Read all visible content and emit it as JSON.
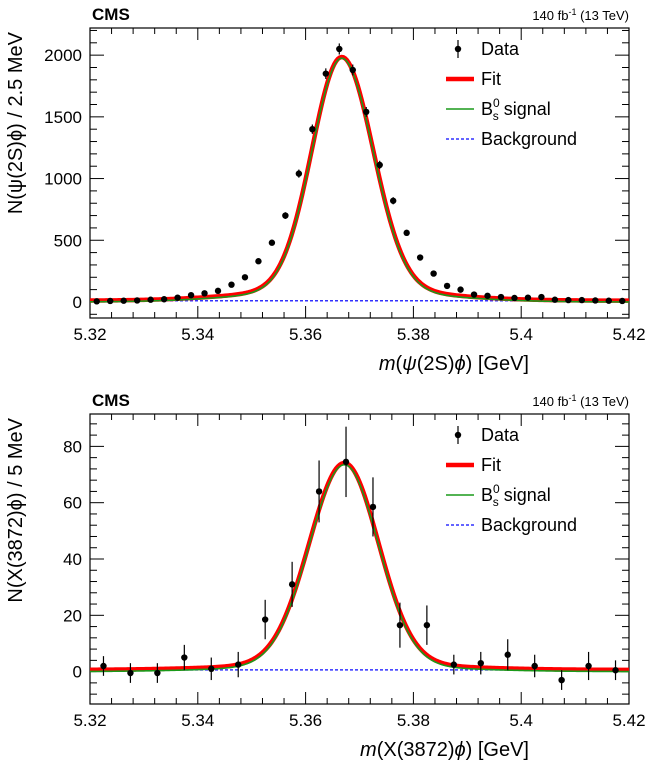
{
  "chart_data": [
    {
      "type": "scatter",
      "experiment": "CMS",
      "lumi_value": "140 fb",
      "lumi_exp": "-1",
      "lumi_energy": "(13 TeV)",
      "xlabel_m": "m",
      "xlabel_paren": "(",
      "xlabel_state": "ψ",
      "xlabel_state_rest": "(2S)",
      "xlabel_phi": "ϕ",
      "xlabel_close": ") [GeV]",
      "ylabel": "N(ψ(2S)ϕ) / 2.5 MeV",
      "xlim": [
        5.32,
        5.42
      ],
      "ylim": [
        -130,
        2220
      ],
      "xticks": [
        5.32,
        5.34,
        5.36,
        5.38,
        5.4,
        5.42
      ],
      "xtick_labels": [
        "5.32",
        "5.34",
        "5.36",
        "5.38",
        "5.4",
        "5.42"
      ],
      "yticks": [
        0,
        500,
        1000,
        1500,
        2000
      ],
      "ytick_labels": [
        "0",
        "500",
        "1000",
        "1500",
        "2000"
      ],
      "legend": {
        "position": "top-right",
        "data": "Data",
        "fit": "Fit",
        "signal_main": "B",
        "signal_sup": "0",
        "signal_sub": "s",
        "signal_rest": " signal",
        "background": "Background"
      },
      "series": [
        {
          "name": "Data",
          "x": [
            5.32125,
            5.32375,
            5.32625,
            5.32875,
            5.33125,
            5.33375,
            5.33625,
            5.33875,
            5.34125,
            5.34375,
            5.34625,
            5.34875,
            5.35125,
            5.35375,
            5.35625,
            5.35875,
            5.36125,
            5.36375,
            5.36625,
            5.36875,
            5.37125,
            5.37375,
            5.37625,
            5.37875,
            5.38125,
            5.38375,
            5.38625,
            5.38875,
            5.39125,
            5.39375,
            5.39625,
            5.39875,
            5.40125,
            5.40375,
            5.40625,
            5.40875,
            5.41125,
            5.41375,
            5.41625,
            5.41875
          ],
          "y": [
            5,
            8,
            10,
            12,
            18,
            22,
            35,
            55,
            70,
            90,
            140,
            200,
            330,
            480,
            700,
            1040,
            1400,
            1850,
            2050,
            1880,
            1540,
            1110,
            820,
            560,
            360,
            230,
            130,
            100,
            60,
            50,
            40,
            32,
            35,
            40,
            18,
            15,
            15,
            12,
            10,
            8
          ],
          "err": [
            3,
            3,
            4,
            4,
            5,
            5,
            6,
            8,
            9,
            10,
            12,
            15,
            19,
            22,
            27,
            33,
            38,
            43,
            45,
            44,
            40,
            34,
            29,
            24,
            19,
            15,
            12,
            10,
            8,
            7,
            7,
            6,
            6,
            7,
            5,
            4,
            4,
            4,
            4,
            3
          ]
        },
        {
          "name": "Fit",
          "line_color": "#ff0000",
          "model": {
            "mean": 5.3667,
            "sigma_left": 0.0055,
            "sigma_right": 0.0058,
            "amplitude": 1975,
            "tail_frac": 0.05,
            "tail_width": 0.016,
            "background": 10
          }
        },
        {
          "name": "B_s^0 signal",
          "line_color": "#1a9a1a"
        },
        {
          "name": "Background",
          "line_color": "#3030ff",
          "value": 10
        }
      ]
    },
    {
      "type": "scatter",
      "experiment": "CMS",
      "lumi_value": "140 fb",
      "lumi_exp": "-1",
      "lumi_energy": "(13 TeV)",
      "xlabel_m": "m",
      "xlabel_paren": "(X(3872)",
      "xlabel_phi": "ϕ",
      "xlabel_close": ") [GeV]",
      "ylabel": "N(X(3872)ϕ) / 5 MeV",
      "xlim": [
        5.32,
        5.42
      ],
      "ylim": [
        -11.5,
        91.5
      ],
      "xticks": [
        5.32,
        5.34,
        5.36,
        5.38,
        5.4,
        5.42
      ],
      "xtick_labels": [
        "5.32",
        "5.34",
        "5.36",
        "5.38",
        "5.4",
        "5.42"
      ],
      "yticks": [
        0,
        20,
        40,
        60,
        80
      ],
      "ytick_labels": [
        "0",
        "20",
        "40",
        "60",
        "80"
      ],
      "legend": {
        "position": "top-right",
        "data": "Data",
        "fit": "Fit",
        "signal_main": "B",
        "signal_sup": "0",
        "signal_sub": "s",
        "signal_rest": " signal",
        "background": "Background"
      },
      "series": [
        {
          "name": "Data",
          "x": [
            5.3225,
            5.3275,
            5.3325,
            5.3375,
            5.3425,
            5.3475,
            5.3525,
            5.3575,
            5.3625,
            5.3675,
            5.3725,
            5.3775,
            5.3825,
            5.3875,
            5.3925,
            5.3975,
            5.4025,
            5.4075,
            5.4125,
            5.4175
          ],
          "y": [
            2,
            -0.5,
            -0.5,
            5,
            1,
            2.5,
            18.5,
            31,
            64,
            74.5,
            58.5,
            16.5,
            16.5,
            2.5,
            3,
            6,
            2,
            -3,
            2,
            0.5
          ],
          "err": [
            3.5,
            3.5,
            3.5,
            4.5,
            4,
            4.5,
            7,
            8,
            11,
            12.5,
            10.5,
            8,
            7,
            3.5,
            4,
            5.5,
            4,
            3.5,
            5,
            3.5
          ]
        },
        {
          "name": "Fit",
          "line_color": "#ff0000",
          "model": {
            "mean": 5.3672,
            "sigma_left": 0.0065,
            "sigma_right": 0.0063,
            "amplitude": 73.5,
            "tail_frac": 0.03,
            "tail_width": 0.018,
            "background": 0.6
          }
        },
        {
          "name": "B_s^0 signal",
          "line_color": "#1a9a1a"
        },
        {
          "name": "Background",
          "line_color": "#3030ff",
          "value": 0.6
        }
      ]
    }
  ]
}
